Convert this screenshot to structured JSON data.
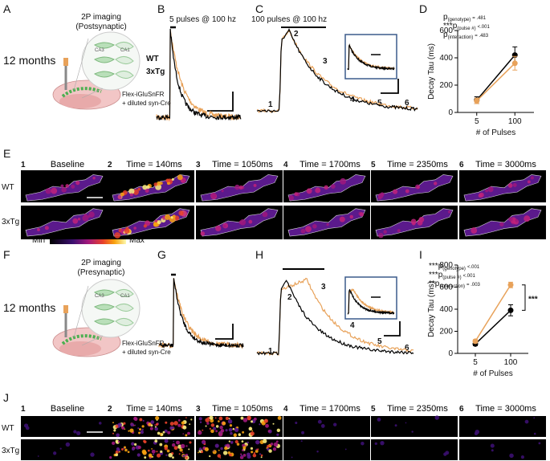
{
  "figure": {
    "panel_a": {
      "letter": "A",
      "age": "12 months",
      "title": [
        "2P imaging",
        "(Postsynaptic)"
      ],
      "regions": [
        "CA3",
        "CA1"
      ],
      "virus": [
        "Flex-iGluSnFR",
        "+ diluted syn-Cre"
      ]
    },
    "panel_b": {
      "letter": "B",
      "label": "5 pulses @ 100 hz"
    },
    "panel_c": {
      "letter": "C",
      "label": "100 pulses @ 100 hz"
    },
    "panel_d": {
      "letter": "D"
    },
    "panel_e": {
      "letter": "E",
      "frames": [
        {
          "num": "1",
          "label": "Baseline"
        },
        {
          "num": "2",
          "label": "Time = 140ms"
        },
        {
          "num": "3",
          "label": "Time = 1050ms"
        },
        {
          "num": "4",
          "label": "Time = 1700ms"
        },
        {
          "num": "5",
          "label": "Time = 2350ms"
        },
        {
          "num": "6",
          "label": "Time = 3000ms"
        }
      ],
      "rows": [
        "WT",
        "3xTg"
      ],
      "colorbar": [
        "Min",
        "Max"
      ]
    },
    "panel_f": {
      "letter": "F",
      "age": "12 months",
      "title": [
        "2P imaging",
        "(Presynaptic)"
      ],
      "regions": [
        "CA3",
        "CA1"
      ],
      "virus": [
        "Flex-iGluSnFR",
        "+ diluted syn-Cre"
      ]
    },
    "panel_g": {
      "letter": "G"
    },
    "panel_h": {
      "letter": "H"
    },
    "panel_i": {
      "letter": "I"
    },
    "panel_j": {
      "letter": "J",
      "frames": [
        {
          "num": "1",
          "label": "Baseline"
        },
        {
          "num": "2",
          "label": "Time = 140ms"
        },
        {
          "num": "3",
          "label": "Time = 1050ms"
        },
        {
          "num": "4",
          "label": "Time = 1700ms"
        },
        {
          "num": "5",
          "label": "Time = 2350ms"
        },
        {
          "num": "6",
          "label": "Time = 3000ms"
        }
      ],
      "rows": [
        "WT",
        "3xTg"
      ]
    }
  },
  "chart_data": [
    {
      "type": "line",
      "categories": [
        "5",
        "100"
      ],
      "xlabel": "# of Pulses",
      "ylabel": "Decay Tau (ms)",
      "ylim": [
        0,
        600
      ],
      "yticks": [
        0,
        200,
        400,
        600
      ],
      "series": [
        {
          "name": "WT",
          "color": "#000000",
          "values": [
            90,
            420
          ],
          "errors": [
            25,
            60
          ]
        },
        {
          "name": "3xTg",
          "color": "#e8a25a",
          "values": [
            85,
            360
          ],
          "errors": [
            20,
            50
          ]
        }
      ],
      "stats": [
        {
          "p": "p",
          "sub": "(genotype)",
          "value": "= .481"
        },
        {
          "stars": "***",
          "p": "p",
          "sub": "(pulse #)",
          "value": "<.001"
        },
        {
          "p": "p",
          "sub": "(interaction)",
          "value": "= .483"
        }
      ]
    },
    {
      "type": "line",
      "categories": [
        "5",
        "100"
      ],
      "xlabel": "# of Pulses",
      "ylabel": "Decay Tau (ms)",
      "ylim": [
        0,
        800
      ],
      "yticks": [
        0,
        200,
        400,
        600,
        800
      ],
      "series": [
        {
          "name": "WT",
          "color": "#000000",
          "values": [
            85,
            390
          ],
          "errors": [
            15,
            50
          ]
        },
        {
          "name": "3xTg",
          "color": "#e8a25a",
          "values": [
            110,
            620
          ],
          "errors": [
            15,
            25
          ]
        }
      ],
      "stats": [
        {
          "stars": "***",
          "p": "p",
          "sub": "(genotype)",
          "value": "<.001"
        },
        {
          "stars": "***",
          "p": "p",
          "sub": "(pulse #)",
          "value": "<.001"
        },
        {
          "stars": "**",
          "p": "p",
          "sub": "(interaction)",
          "value": "= .003"
        }
      ],
      "significance": "***"
    }
  ]
}
